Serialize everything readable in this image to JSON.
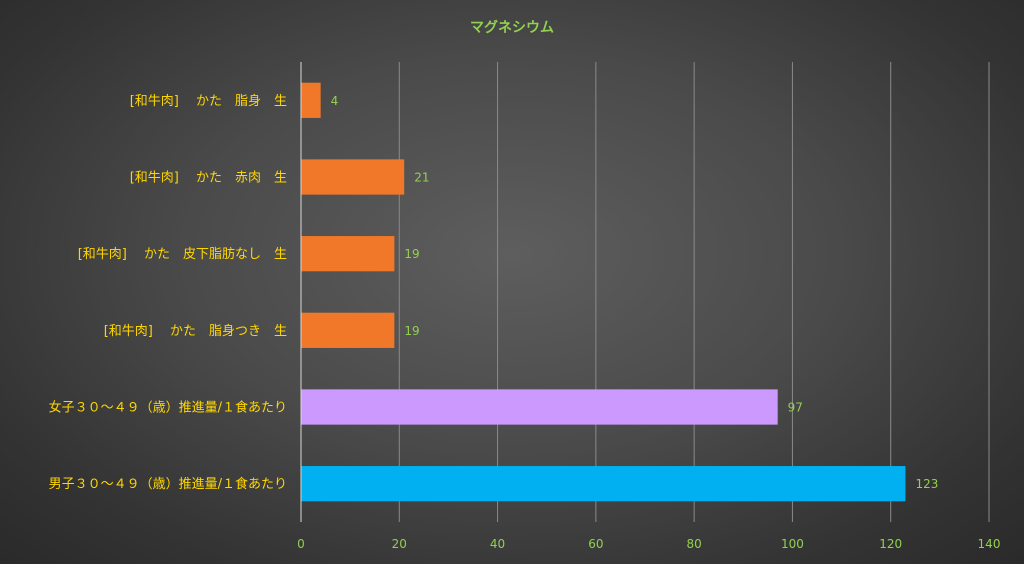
{
  "chart_data": {
    "type": "bar",
    "orientation": "horizontal",
    "title": "マグネシウム",
    "categories": [
      "[和牛肉]　 かた　脂身　生",
      "[和牛肉]　 かた　赤肉　生",
      "[和牛肉]　 かた　皮下脂肪なし　生",
      "[和牛肉]　 かた　脂身つき　生",
      "女子３０～４９（歳）推進量/１食あたり",
      "男子３０～４９（歳）推進量/１食あたり"
    ],
    "values": [
      4,
      21,
      19,
      19,
      97,
      123
    ],
    "bar_colors": [
      "#F07828",
      "#F07828",
      "#F07828",
      "#F07828",
      "#CC99FF",
      "#00B0F0"
    ],
    "xlim": [
      0,
      140
    ],
    "xticks": [
      0,
      20,
      40,
      60,
      80,
      100,
      120,
      140
    ],
    "grid": true,
    "legend": "none",
    "colors": {
      "title": "#92D050",
      "category_labels": "#FFD700",
      "value_labels": "#92D050",
      "tick_labels": "#92D050",
      "grid": "#8a8a8a",
      "axis": "#d9d9d9"
    }
  }
}
